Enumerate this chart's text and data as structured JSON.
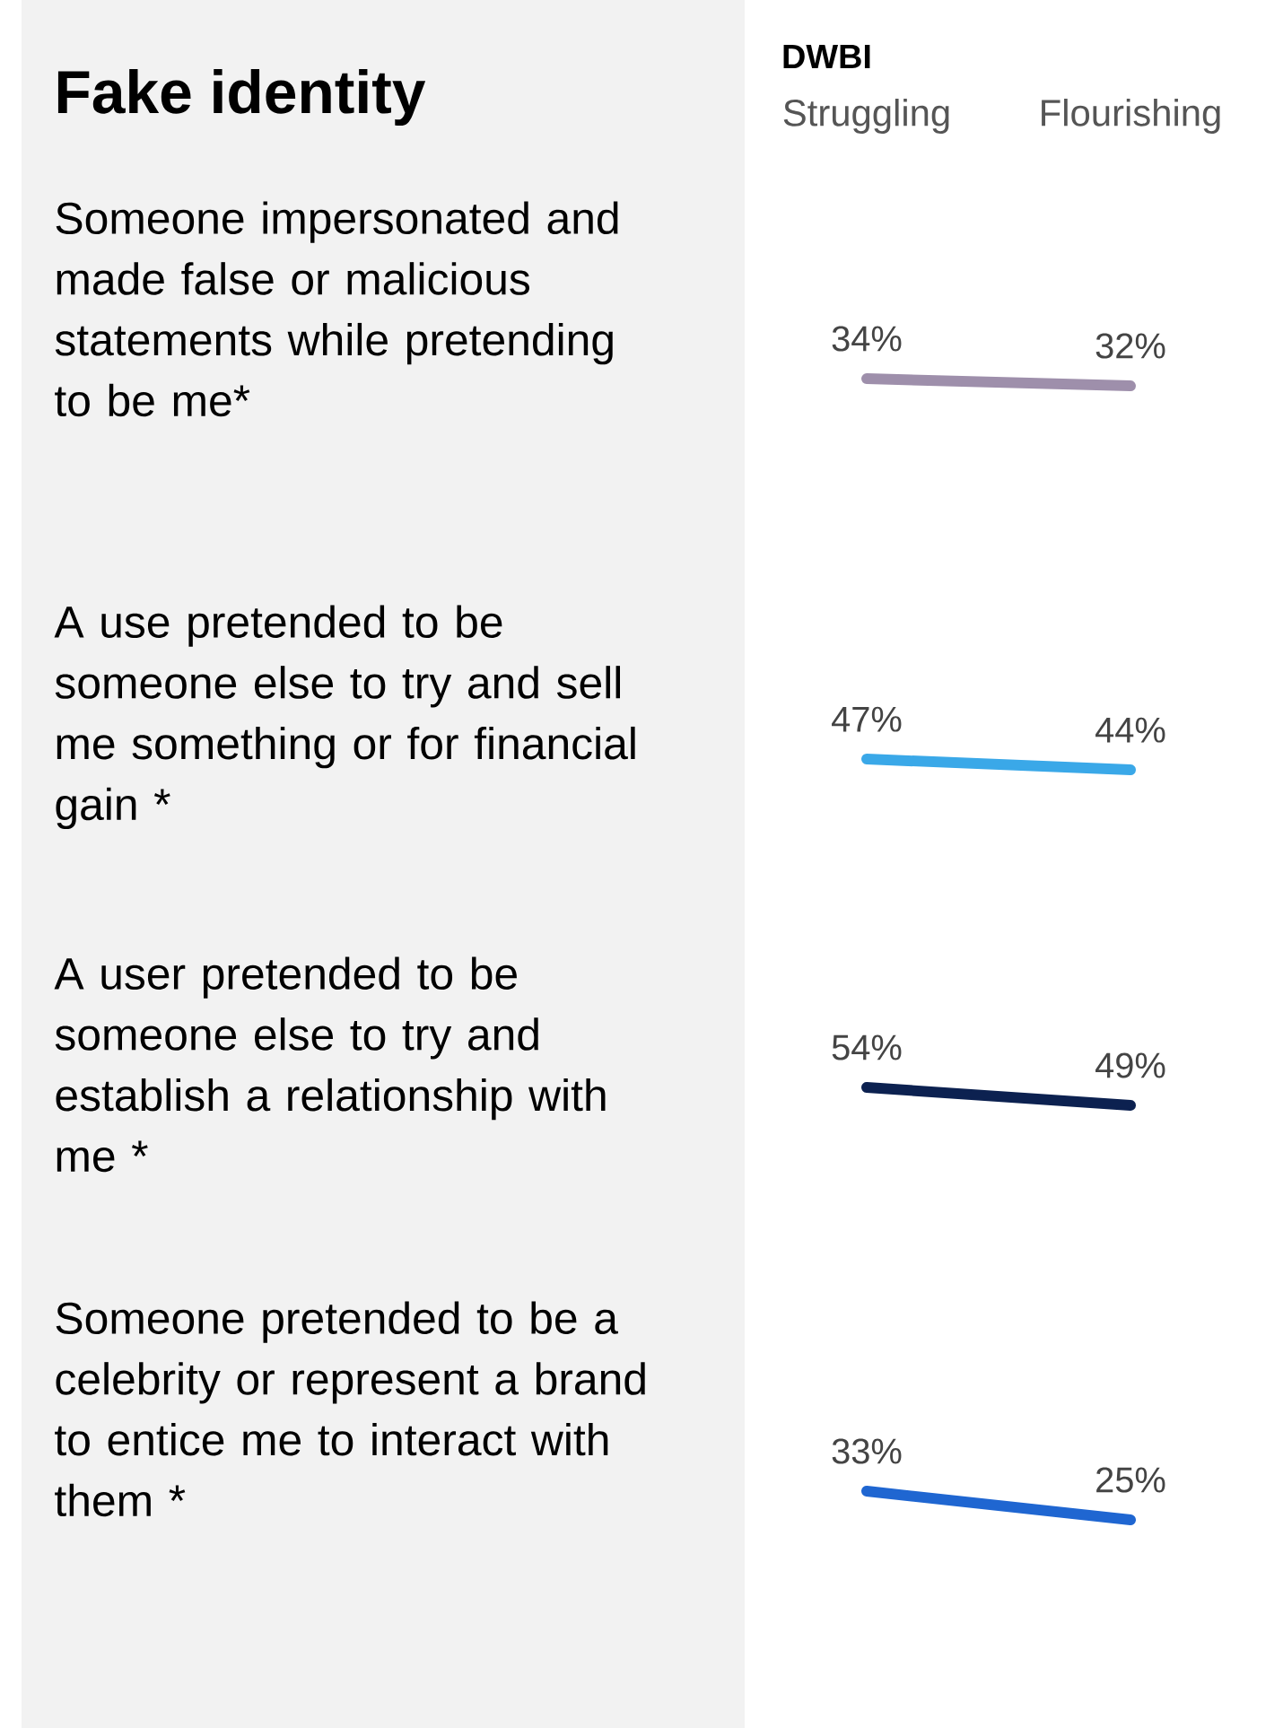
{
  "chart_data": [
    {
      "type": "other",
      "title": "Fake identity"
    },
    {
      "type": "line",
      "title": "Someone impersonated and made false or malicious statements while pretending to be me*",
      "xlabel": "DWBI",
      "categories": [
        "Struggling",
        "Flourishing"
      ],
      "values": [
        34,
        32
      ],
      "value_labels": [
        "34%",
        "32%"
      ],
      "color": "#9e8fab",
      "tick_labels": "x"
    },
    {
      "type": "line",
      "title": "A use pretended to be someone else to try and sell me something or for financial gain *",
      "categories": [
        null,
        null
      ],
      "values": [
        47,
        44
      ],
      "value_labels": [
        "47%",
        "44%"
      ],
      "color": "#3aa8e8",
      "tick_labels": false
    },
    {
      "type": "line",
      "title": "A user pretended to be someone else to try and establish a relationship with me *",
      "categories": [
        null,
        null
      ],
      "values": [
        54,
        49
      ],
      "value_labels": [
        "54%",
        "49%"
      ],
      "color": "#0c2150",
      "tick_labels": false
    },
    {
      "type": "line",
      "title": "Someone pretended to be a celebrity or represent a brand to entice me to interact with them *",
      "categories": [
        null,
        null
      ],
      "values": [
        33,
        25
      ],
      "value_labels": [
        "33%",
        "25%"
      ],
      "color": "#1f66d1",
      "tick_labels": false
    }
  ]
}
